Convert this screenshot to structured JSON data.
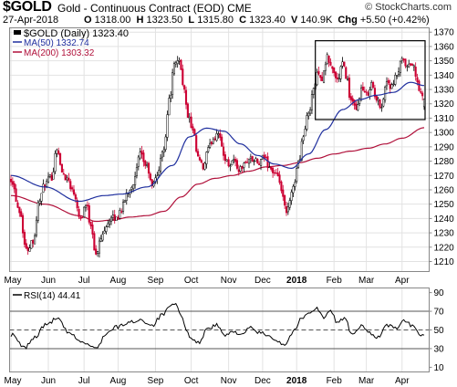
{
  "header": {
    "symbol": "$GOLD",
    "name": "Gold - Continuous Contract (EOD)",
    "exchange": "CME",
    "brand": "© StockCharts.com",
    "date": "27-Apr-2018",
    "open_label": "O",
    "open": "1318.00",
    "high_label": "H",
    "high": "1323.50",
    "low_label": "L",
    "low": "1315.80",
    "close_label": "C",
    "close": "1323.40",
    "volume_label": "V",
    "volume": "140.9K",
    "change_label": "Chg",
    "change": "+5.50 (+0.42%)"
  },
  "colors": {
    "up": "#000000",
    "down": "#cc0033",
    "ma50": "#1f2f9e",
    "ma200": "#b0103a",
    "rsi": "#000000",
    "grid": "#e2e2e2"
  },
  "chart_data": [
    {
      "type": "candlestick",
      "legend": [
        {
          "label": "$GOLD (Daily) 1323.40"
        },
        {
          "label": "MA(50) 1332.74"
        },
        {
          "label": "MA(200) 1303.32"
        }
      ],
      "x_tick_labels": [
        "May",
        "Jun",
        "Jul",
        "Aug",
        "Sep",
        "Oct",
        "Nov",
        "Dec",
        "2018",
        "Feb",
        "Mar",
        "Apr"
      ],
      "y_ticks": [
        1210,
        1220,
        1230,
        1240,
        1250,
        1260,
        1270,
        1280,
        1290,
        1300,
        1310,
        1320,
        1330,
        1340,
        1350,
        1360,
        1370
      ],
      "ylim": [
        1203,
        1373
      ],
      "close_anchors": [
        [
          0,
          1268
        ],
        [
          5,
          1246
        ],
        [
          9,
          1218
        ],
        [
          13,
          1225
        ],
        [
          17,
          1254
        ],
        [
          20,
          1264
        ],
        [
          24,
          1269
        ],
        [
          27,
          1290
        ],
        [
          30,
          1272
        ],
        [
          33,
          1268
        ],
        [
          37,
          1258
        ],
        [
          41,
          1240
        ],
        [
          44,
          1250
        ],
        [
          47,
          1236
        ],
        [
          50,
          1214
        ],
        [
          53,
          1226
        ],
        [
          56,
          1236
        ],
        [
          59,
          1240
        ],
        [
          62,
          1240
        ],
        [
          65,
          1247
        ],
        [
          69,
          1259
        ],
        [
          72,
          1265
        ],
        [
          76,
          1284
        ],
        [
          80,
          1276
        ],
        [
          83,
          1262
        ],
        [
          86,
          1271
        ],
        [
          90,
          1290
        ],
        [
          93,
          1322
        ],
        [
          96,
          1346
        ],
        [
          99,
          1352
        ],
        [
          101,
          1335
        ],
        [
          104,
          1312
        ],
        [
          107,
          1300
        ],
        [
          110,
          1282
        ],
        [
          113,
          1275
        ],
        [
          116,
          1288
        ],
        [
          119,
          1296
        ],
        [
          122,
          1301
        ],
        [
          125,
          1284
        ],
        [
          128,
          1278
        ],
        [
          131,
          1281
        ],
        [
          134,
          1274
        ],
        [
          137,
          1277
        ],
        [
          140,
          1282
        ],
        [
          143,
          1280
        ],
        [
          146,
          1278
        ],
        [
          149,
          1283
        ],
        [
          152,
          1276
        ],
        [
          155,
          1271
        ],
        [
          158,
          1266
        ],
        [
          160,
          1253
        ],
        [
          162,
          1243
        ],
        [
          164,
          1251
        ],
        [
          166,
          1263
        ],
        [
          169,
          1279
        ],
        [
          172,
          1298
        ],
        [
          175,
          1314
        ],
        [
          178,
          1331
        ],
        [
          181,
          1343
        ],
        [
          183,
          1337
        ],
        [
          186,
          1352
        ],
        [
          189,
          1344
        ],
        [
          192,
          1336
        ],
        [
          195,
          1348
        ],
        [
          197,
          1340
        ],
        [
          200,
          1322
        ],
        [
          203,
          1315
        ],
        [
          206,
          1330
        ],
        [
          209,
          1326
        ],
        [
          212,
          1334
        ],
        [
          215,
          1322
        ],
        [
          218,
          1319
        ],
        [
          221,
          1336
        ],
        [
          224,
          1331
        ],
        [
          227,
          1340
        ],
        [
          230,
          1350
        ],
        [
          233,
          1345
        ],
        [
          236,
          1348
        ],
        [
          239,
          1335
        ],
        [
          241,
          1326
        ],
        [
          243,
          1323.4
        ]
      ],
      "ma50_anchors": [
        [
          0,
          1270
        ],
        [
          20,
          1262
        ],
        [
          40,
          1252
        ],
        [
          55,
          1256
        ],
        [
          65,
          1257
        ],
        [
          80,
          1262
        ],
        [
          95,
          1277
        ],
        [
          105,
          1297
        ],
        [
          115,
          1303
        ],
        [
          125,
          1301
        ],
        [
          135,
          1292
        ],
        [
          145,
          1284
        ],
        [
          155,
          1278
        ],
        [
          165,
          1275
        ],
        [
          175,
          1285
        ],
        [
          185,
          1302
        ],
        [
          195,
          1316
        ],
        [
          205,
          1323
        ],
        [
          215,
          1326
        ],
        [
          225,
          1328
        ],
        [
          235,
          1335
        ],
        [
          243,
          1332.74
        ]
      ],
      "ma200_anchors": [
        [
          0,
          1256
        ],
        [
          20,
          1250
        ],
        [
          40,
          1242
        ],
        [
          50,
          1238
        ],
        [
          60,
          1239
        ],
        [
          70,
          1241
        ],
        [
          80,
          1242
        ],
        [
          90,
          1245
        ],
        [
          100,
          1255
        ],
        [
          110,
          1264
        ],
        [
          120,
          1268
        ],
        [
          130,
          1270
        ],
        [
          140,
          1273
        ],
        [
          150,
          1276
        ],
        [
          160,
          1277
        ],
        [
          170,
          1279
        ],
        [
          180,
          1282
        ],
        [
          190,
          1285
        ],
        [
          200,
          1287
        ],
        [
          210,
          1289
        ],
        [
          220,
          1292
        ],
        [
          230,
          1296
        ],
        [
          243,
          1303.32
        ]
      ],
      "trading_range_box": {
        "x_start_index": 179,
        "x_end_index": 243,
        "y_low": 1309,
        "y_high": 1364
      }
    },
    {
      "type": "line",
      "legend": [
        {
          "label": "RSI(14) 44.41"
        }
      ],
      "x_tick_labels": [
        "May",
        "Jun",
        "Jul",
        "Aug",
        "Sep",
        "Oct",
        "Nov",
        "Dec",
        "2018",
        "Feb",
        "Mar",
        "Apr"
      ],
      "y_ticks": [
        10,
        30,
        50,
        70,
        90
      ],
      "ylim": [
        5,
        95
      ],
      "reference_lines": [
        30,
        50,
        70
      ],
      "rsi_anchors": [
        [
          0,
          45
        ],
        [
          8,
          31
        ],
        [
          14,
          42
        ],
        [
          20,
          55
        ],
        [
          27,
          62
        ],
        [
          35,
          45
        ],
        [
          43,
          36
        ],
        [
          50,
          30
        ],
        [
          56,
          46
        ],
        [
          62,
          53
        ],
        [
          70,
          58
        ],
        [
          76,
          61
        ],
        [
          83,
          55
        ],
        [
          89,
          66
        ],
        [
          94,
          75
        ],
        [
          97,
          78
        ],
        [
          100,
          64
        ],
        [
          105,
          44
        ],
        [
          110,
          36
        ],
        [
          116,
          52
        ],
        [
          121,
          55
        ],
        [
          126,
          44
        ],
        [
          131,
          48
        ],
        [
          136,
          46
        ],
        [
          141,
          52
        ],
        [
          146,
          47
        ],
        [
          152,
          44
        ],
        [
          157,
          38
        ],
        [
          161,
          34
        ],
        [
          166,
          48
        ],
        [
          171,
          62
        ],
        [
          176,
          70
        ],
        [
          180,
          73
        ],
        [
          184,
          63
        ],
        [
          188,
          70
        ],
        [
          192,
          58
        ],
        [
          196,
          63
        ],
        [
          201,
          44
        ],
        [
          206,
          54
        ],
        [
          211,
          47
        ],
        [
          216,
          42
        ],
        [
          221,
          55
        ],
        [
          226,
          52
        ],
        [
          231,
          59
        ],
        [
          236,
          55
        ],
        [
          240,
          46
        ],
        [
          243,
          44.41
        ]
      ]
    }
  ]
}
